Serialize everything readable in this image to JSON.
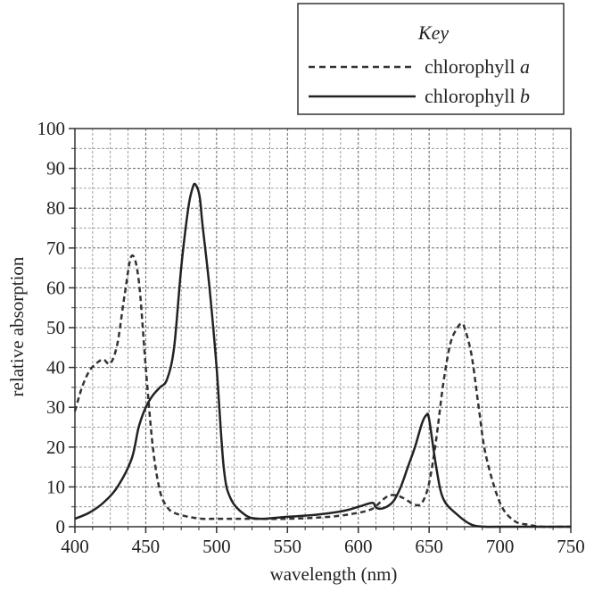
{
  "chart_data": {
    "type": "line",
    "xlabel": "wavelength (nm)",
    "ylabel": "relative absorption",
    "xlim": [
      400,
      750
    ],
    "ylim": [
      0,
      100
    ],
    "x_major_ticks": [
      400,
      450,
      500,
      550,
      600,
      650,
      700,
      750
    ],
    "y_major_ticks": [
      0,
      10,
      20,
      30,
      40,
      50,
      60,
      70,
      80,
      90,
      100
    ],
    "grid": "dashed, minor every 12.5 nm and 5 units",
    "legend": {
      "title": "Key",
      "placement": "top-right, above plot",
      "entries": [
        {
          "prefix": "chlorophyll ",
          "italic": "a",
          "style": "dashed"
        },
        {
          "prefix": "chlorophyll ",
          "italic": "b",
          "style": "solid"
        }
      ]
    },
    "series": [
      {
        "name": "chlorophyll a",
        "style": "dashed",
        "color": "#333333",
        "x": [
          400,
          405,
          410,
          415,
          420,
          425,
          430,
          435,
          440,
          445,
          450,
          455,
          460,
          465,
          470,
          480,
          490,
          500,
          520,
          550,
          580,
          600,
          610,
          615,
          620,
          625,
          630,
          635,
          640,
          645,
          650,
          655,
          660,
          665,
          670,
          673,
          675,
          680,
          685,
          690,
          700,
          710,
          720,
          730,
          740,
          750
        ],
        "y": [
          29,
          35,
          39,
          41,
          42,
          41,
          46,
          58,
          68,
          62,
          40,
          20,
          9,
          5,
          3.5,
          2.5,
          2,
          2,
          2,
          2,
          2.5,
          3.5,
          4.5,
          6,
          7.5,
          8,
          7.5,
          6.5,
          5.5,
          6,
          11,
          22,
          36,
          46,
          50,
          51,
          50,
          43,
          30,
          18,
          6,
          1.5,
          0.5,
          0,
          0,
          0
        ]
      },
      {
        "name": "chlorophyll b",
        "style": "solid",
        "color": "#222222",
        "x": [
          400,
          410,
          420,
          430,
          440,
          445,
          450,
          455,
          460,
          465,
          470,
          475,
          480,
          483,
          485,
          488,
          490,
          495,
          500,
          505,
          510,
          520,
          530,
          550,
          570,
          590,
          600,
          610,
          612,
          615,
          620,
          625,
          630,
          635,
          640,
          645,
          648,
          650,
          655,
          660,
          670,
          680,
          690,
          700,
          750
        ],
        "y": [
          2,
          3.5,
          6,
          10,
          17,
          25,
          30,
          33,
          35,
          37,
          45,
          65,
          80,
          85,
          86,
          83,
          76,
          60,
          40,
          15,
          7,
          3,
          2,
          2.5,
          3,
          4,
          5,
          6,
          5,
          4.5,
          5,
          6.5,
          10,
          15,
          20,
          26,
          28,
          27,
          15,
          7,
          3,
          0.5,
          0,
          0,
          0
        ]
      }
    ]
  }
}
